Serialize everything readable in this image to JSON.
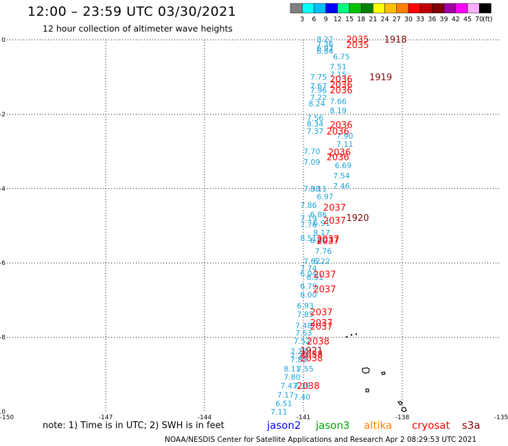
{
  "header": {
    "title": "12:00 – 23:59 UTC 03/30/2021",
    "subtitle": "12 hour collection of altimeter wave heights"
  },
  "colorbar": {
    "labels": [
      "3",
      "6",
      "9",
      "12",
      "15",
      "18",
      "21",
      "24",
      "27",
      "30",
      "33",
      "36",
      "39",
      "42",
      "45",
      "70"
    ],
    "unit": "(ft)",
    "colors": [
      "#808080",
      "#00ffff",
      "#00bfff",
      "#0000ff",
      "#00ff80",
      "#00c000",
      "#008000",
      "#ffff00",
      "#ffc000",
      "#ff8000",
      "#ff0000",
      "#c00000",
      "#800000",
      "#a000a0",
      "#ff00ff",
      "#ffb0ff",
      "#000000"
    ]
  },
  "footer": {
    "note": "note: 1) Time is in UTC; 2) SWH is in feet",
    "legend": [
      {
        "name": "jason2",
        "color": "#0000ff"
      },
      {
        "name": "jason3",
        "color": "#00a000"
      },
      {
        "name": "altika",
        "color": "#ff8000"
      },
      {
        "name": "cryosat",
        "color": "#ff0000"
      },
      {
        "name": "s3a",
        "color": "#800000"
      }
    ],
    "credit": "NOAA/NESDIS Center for Satellite Applications and Research    Apr  2 08:29:53 UTC 2021"
  },
  "chart_data": {
    "type": "scatter",
    "xlim": [
      -150,
      -135
    ],
    "ylim": [
      -10,
      0
    ],
    "xticks": [
      "-150",
      "-147",
      "-144",
      "-141",
      "-138",
      "-135"
    ],
    "yticks": [
      "0",
      "-2",
      "-4",
      "-6",
      "-8",
      "-10"
    ],
    "grid": true,
    "swh_color": "#1aa3d9",
    "swh_labels": [
      {
        "x": -140.6,
        "y": 0.02,
        "v": "8.22"
      },
      {
        "x": -140.6,
        "y": -0.12,
        "v": "7.36"
      },
      {
        "x": -140.6,
        "y": -0.22,
        "v": "6.92"
      },
      {
        "x": -140.6,
        "y": -0.3,
        "v": "6.84"
      },
      {
        "x": -140.1,
        "y": -0.45,
        "v": "6.75"
      },
      {
        "x": -140.2,
        "y": -0.72,
        "v": "7.51"
      },
      {
        "x": -140.2,
        "y": -0.93,
        "v": "7.15"
      },
      {
        "x": -140.8,
        "y": -1.0,
        "v": "7.75"
      },
      {
        "x": -140.8,
        "y": -1.24,
        "v": "7.67"
      },
      {
        "x": -140.8,
        "y": -1.36,
        "v": "7.96"
      },
      {
        "x": -140.8,
        "y": -1.55,
        "v": "7.22"
      },
      {
        "x": -140.85,
        "y": -1.72,
        "v": "8.24"
      },
      {
        "x": -140.2,
        "y": -1.65,
        "v": "7.66"
      },
      {
        "x": -140.2,
        "y": -1.9,
        "v": "8.19"
      },
      {
        "x": -140.9,
        "y": -2.1,
        "v": "7.56"
      },
      {
        "x": -140.9,
        "y": -2.26,
        "v": "8.34"
      },
      {
        "x": -140.9,
        "y": -2.45,
        "v": "7.37"
      },
      {
        "x": -140.0,
        "y": -2.58,
        "v": "7.90"
      },
      {
        "x": -140.0,
        "y": -2.8,
        "v": "7.11"
      },
      {
        "x": -141.0,
        "y": -3.0,
        "v": "7.70"
      },
      {
        "x": -141.0,
        "y": -3.28,
        "v": "7.09"
      },
      {
        "x": -140.05,
        "y": -3.38,
        "v": "6.69"
      },
      {
        "x": -140.1,
        "y": -3.65,
        "v": "7.54"
      },
      {
        "x": -140.1,
        "y": -3.93,
        "v": "7.46"
      },
      {
        "x": -141.0,
        "y": -4.0,
        "v": "7.38"
      },
      {
        "x": -140.8,
        "y": -4.0,
        "v": "8.11"
      },
      {
        "x": -140.6,
        "y": -4.22,
        "v": "6.97"
      },
      {
        "x": -141.1,
        "y": -4.45,
        "v": "7.86"
      },
      {
        "x": -140.8,
        "y": -4.7,
        "v": "6.86"
      },
      {
        "x": -141.1,
        "y": -4.8,
        "v": "7.19"
      },
      {
        "x": -141.1,
        "y": -4.97,
        "v": "7.76"
      },
      {
        "x": -140.7,
        "y": -4.93,
        "v": "6.91"
      },
      {
        "x": -140.7,
        "y": -5.18,
        "v": "8.17"
      },
      {
        "x": -141.1,
        "y": -5.33,
        "v": "8.51"
      },
      {
        "x": -140.8,
        "y": -5.4,
        "v": "6.96"
      },
      {
        "x": -140.65,
        "y": -5.68,
        "v": "7.76"
      },
      {
        "x": -140.7,
        "y": -5.95,
        "v": "6.22"
      },
      {
        "x": -141.0,
        "y": -5.95,
        "v": "7.62"
      },
      {
        "x": -141.1,
        "y": -6.14,
        "v": "7.74"
      },
      {
        "x": -141.1,
        "y": -6.28,
        "v": "6.04"
      },
      {
        "x": -140.9,
        "y": -6.38,
        "v": "6.91"
      },
      {
        "x": -141.1,
        "y": -6.62,
        "v": "6.79"
      },
      {
        "x": -141.1,
        "y": -6.85,
        "v": "8.00"
      },
      {
        "x": -141.2,
        "y": -7.15,
        "v": "6.93"
      },
      {
        "x": -141.2,
        "y": -7.38,
        "v": "7.85"
      },
      {
        "x": -141.25,
        "y": -7.68,
        "v": "7.48"
      },
      {
        "x": -141.25,
        "y": -7.88,
        "v": "7.63"
      },
      {
        "x": -141.3,
        "y": -8.1,
        "v": "7.52"
      },
      {
        "x": -141.4,
        "y": -8.38,
        "v": "7.78"
      },
      {
        "x": -141.4,
        "y": -8.5,
        "v": "7.29"
      },
      {
        "x": -141.4,
        "y": -8.6,
        "v": "7.83"
      },
      {
        "x": -141.6,
        "y": -8.85,
        "v": "8.11"
      },
      {
        "x": -141.2,
        "y": -8.85,
        "v": "7.55"
      },
      {
        "x": -141.6,
        "y": -9.07,
        "v": "7.80"
      },
      {
        "x": -141.7,
        "y": -9.3,
        "v": "7.47"
      },
      {
        "x": -141.3,
        "y": -9.3,
        "v": "7.39"
      },
      {
        "x": -141.8,
        "y": -9.55,
        "v": "7.17"
      },
      {
        "x": -141.3,
        "y": -9.6,
        "v": "7.40"
      },
      {
        "x": -141.85,
        "y": -9.78,
        "v": "6.51"
      },
      {
        "x": -142.0,
        "y": -10.0,
        "v": "7.11"
      }
    ],
    "time_labels": [
      {
        "x": -139.7,
        "y": 0.02,
        "t": "2035",
        "sat": "cryosat"
      },
      {
        "x": -139.7,
        "y": -0.13,
        "t": "2035",
        "sat": "cryosat"
      },
      {
        "x": -138.55,
        "y": 0.02,
        "t": "1918",
        "sat": "s3a"
      },
      {
        "x": -140.2,
        "y": -1.05,
        "t": "2036",
        "sat": "cryosat"
      },
      {
        "x": -140.2,
        "y": -1.2,
        "t": "2036",
        "sat": "cryosat"
      },
      {
        "x": -140.2,
        "y": -1.35,
        "t": "2036",
        "sat": "cryosat"
      },
      {
        "x": -139.0,
        "y": -1.0,
        "t": "1919",
        "sat": "s3a"
      },
      {
        "x": -140.2,
        "y": -2.28,
        "t": "2036",
        "sat": "cryosat"
      },
      {
        "x": -140.3,
        "y": -2.45,
        "t": "2036",
        "sat": "cryosat"
      },
      {
        "x": -140.25,
        "y": -3.02,
        "t": "2036",
        "sat": "cryosat"
      },
      {
        "x": -140.3,
        "y": -3.15,
        "t": "2036",
        "sat": "cryosat"
      },
      {
        "x": -140.4,
        "y": -4.5,
        "t": "2037",
        "sat": "cryosat"
      },
      {
        "x": -139.7,
        "y": -4.78,
        "t": "1920",
        "sat": "s3a"
      },
      {
        "x": -140.4,
        "y": -4.85,
        "t": "2037",
        "sat": "cryosat"
      },
      {
        "x": -140.6,
        "y": -5.35,
        "t": "2037",
        "sat": "cryosat"
      },
      {
        "x": -140.6,
        "y": -5.4,
        "t": "2037",
        "sat": "cryosat"
      },
      {
        "x": -140.7,
        "y": -6.3,
        "t": "2037",
        "sat": "cryosat"
      },
      {
        "x": -140.7,
        "y": -6.7,
        "t": "2037",
        "sat": "cryosat"
      },
      {
        "x": -140.8,
        "y": -7.32,
        "t": "2037",
        "sat": "cryosat"
      },
      {
        "x": -140.8,
        "y": -7.6,
        "t": "2037",
        "sat": "cryosat"
      },
      {
        "x": -140.8,
        "y": -7.7,
        "t": "2037",
        "sat": "cryosat"
      },
      {
        "x": -140.9,
        "y": -8.1,
        "t": "2038",
        "sat": "cryosat"
      },
      {
        "x": -141.1,
        "y": -8.35,
        "t": "1921",
        "sat": "s3a"
      },
      {
        "x": -141.1,
        "y": -8.45,
        "t": "2038",
        "sat": "cryosat"
      },
      {
        "x": -141.1,
        "y": -8.55,
        "t": "2038",
        "sat": "cryosat"
      },
      {
        "x": -141.2,
        "y": -9.3,
        "t": "2038",
        "sat": "cryosat"
      }
    ]
  }
}
